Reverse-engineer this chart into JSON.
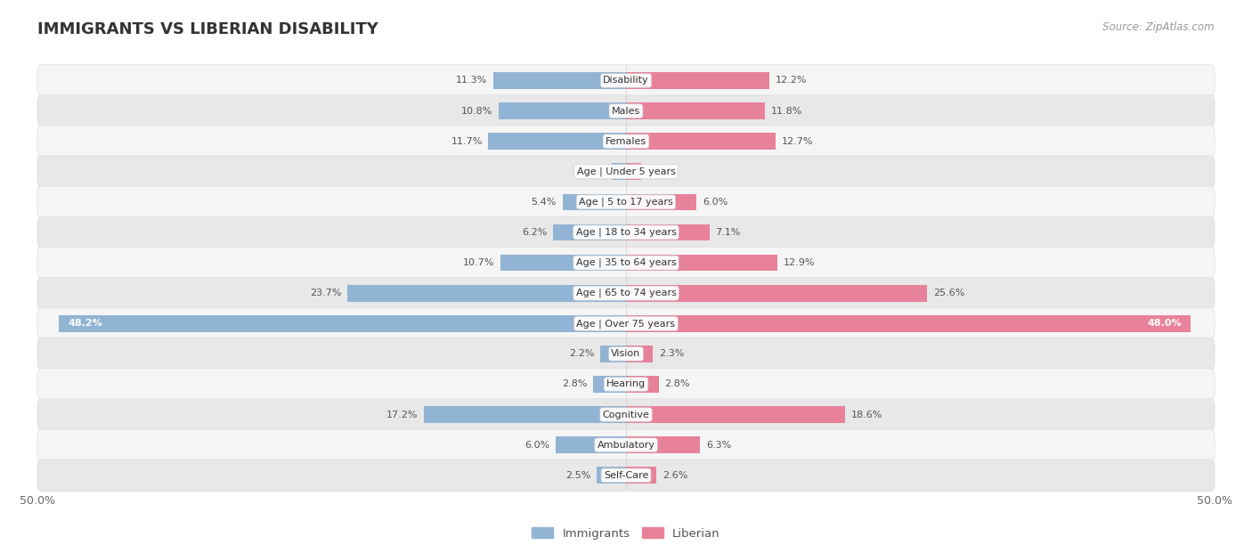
{
  "title": "IMMIGRANTS VS LIBERIAN DISABILITY",
  "source": "Source: ZipAtlas.com",
  "categories": [
    "Disability",
    "Males",
    "Females",
    "Age | Under 5 years",
    "Age | 5 to 17 years",
    "Age | 18 to 34 years",
    "Age | 35 to 64 years",
    "Age | 65 to 74 years",
    "Age | Over 75 years",
    "Vision",
    "Hearing",
    "Cognitive",
    "Ambulatory",
    "Self-Care"
  ],
  "immigrants": [
    11.3,
    10.8,
    11.7,
    1.2,
    5.4,
    6.2,
    10.7,
    23.7,
    48.2,
    2.2,
    2.8,
    17.2,
    6.0,
    2.5
  ],
  "liberian": [
    12.2,
    11.8,
    12.7,
    1.3,
    6.0,
    7.1,
    12.9,
    25.6,
    48.0,
    2.3,
    2.8,
    18.6,
    6.3,
    2.6
  ],
  "immigrant_color": "#92b4d4",
  "liberian_color": "#e8829a",
  "immigrant_color_dark": "#5b8fbf",
  "liberian_color_dark": "#d4547a",
  "axis_max": 50.0,
  "fig_bg": "#ffffff",
  "row_bg_light": "#f5f5f5",
  "row_bg_dark": "#e8e8e8",
  "bar_height": 0.55,
  "legend_immigrants": "Immigrants",
  "legend_liberian": "Liberian",
  "title_fontsize": 13,
  "source_fontsize": 8.5,
  "label_fontsize": 8,
  "cat_fontsize": 8
}
